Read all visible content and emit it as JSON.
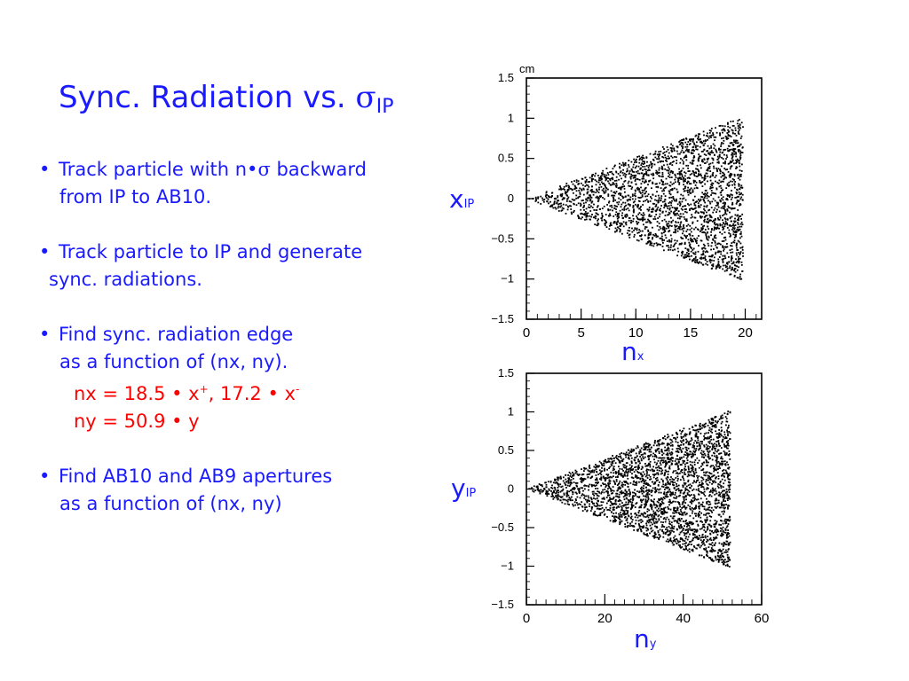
{
  "slide": {
    "title_main": "Sync. Radiation vs. ",
    "title_sigma": "σ",
    "title_sub": "IP",
    "bullets": [
      {
        "bullet": "•",
        "line1": "Track particle with n•",
        "sigma": "σ",
        "line1_end": " backward",
        "line2": "from IP to AB10."
      },
      {
        "bullet": "•",
        "line1": "Track particle to IP and generate",
        "line2": "sync. radiations."
      },
      {
        "bullet": "•",
        "line1": "Find sync. radiation edge",
        "line2": "as a function of (nx, ny).",
        "red1": "nx = 18.5 • x",
        "red1_sup1": "+",
        "red1_mid": ", 17.2 • x",
        "red1_sup2": "-",
        "red2": "ny = 50.9 • y"
      },
      {
        "bullet": "•",
        "line1": "Find AB10 and AB9 apertures",
        "line2": "as a function of (nx, ny)"
      }
    ],
    "colors": {
      "text": "#1a1aff",
      "highlight": "#ff0000",
      "points": "#000000"
    }
  },
  "chart_data": [
    {
      "type": "scatter",
      "unit_label": "cm",
      "xlabel": "n",
      "xlabel_sub": "x",
      "ylabel": "x",
      "ylabel_sub": "IP",
      "xlim": [
        0,
        21.5
      ],
      "ylim": [
        -1.5,
        1.5
      ],
      "xticks": [
        0,
        5,
        10,
        15,
        20
      ],
      "xtick_labels": [
        "0",
        "5",
        "10",
        "15",
        "20"
      ],
      "yticks": [
        1.5,
        1,
        0.5,
        0,
        -0.5,
        -1,
        -1.5
      ],
      "ytick_labels": [
        "1.5",
        "1",
        "0.5",
        "0",
        "−0.5",
        "−1",
        "−1.5"
      ],
      "x_minor_step": 1,
      "grid": false,
      "point_cloud": {
        "description_shape": "triangle",
        "apex": [
          0,
          0
        ],
        "x_max": 19.8,
        "upper_edge_at_xmax": 1.02,
        "lower_edge_at_xmax": -1.02,
        "points": 2600
      }
    },
    {
      "type": "scatter",
      "xlabel": "n",
      "xlabel_sub": "y",
      "ylabel": "y",
      "ylabel_sub": "IP",
      "xlim": [
        0,
        60
      ],
      "ylim": [
        -1.5,
        1.5
      ],
      "xticks": [
        0,
        20,
        40,
        60
      ],
      "xtick_labels": [
        "0",
        "20",
        "40",
        "60"
      ],
      "yticks": [
        1.5,
        1,
        0.5,
        0,
        -0.5,
        -1,
        -1.5
      ],
      "ytick_labels": [
        "1.5",
        "1",
        "0.5",
        "0",
        "−0.5",
        "−1",
        "−1.5"
      ],
      "x_minor_step": 2.5,
      "grid": false,
      "point_cloud": {
        "description_shape": "triangle",
        "apex": [
          0,
          0
        ],
        "x_max": 52,
        "upper_edge_at_xmax": 1.02,
        "lower_edge_at_xmax": -1.02,
        "points": 3000
      }
    }
  ]
}
